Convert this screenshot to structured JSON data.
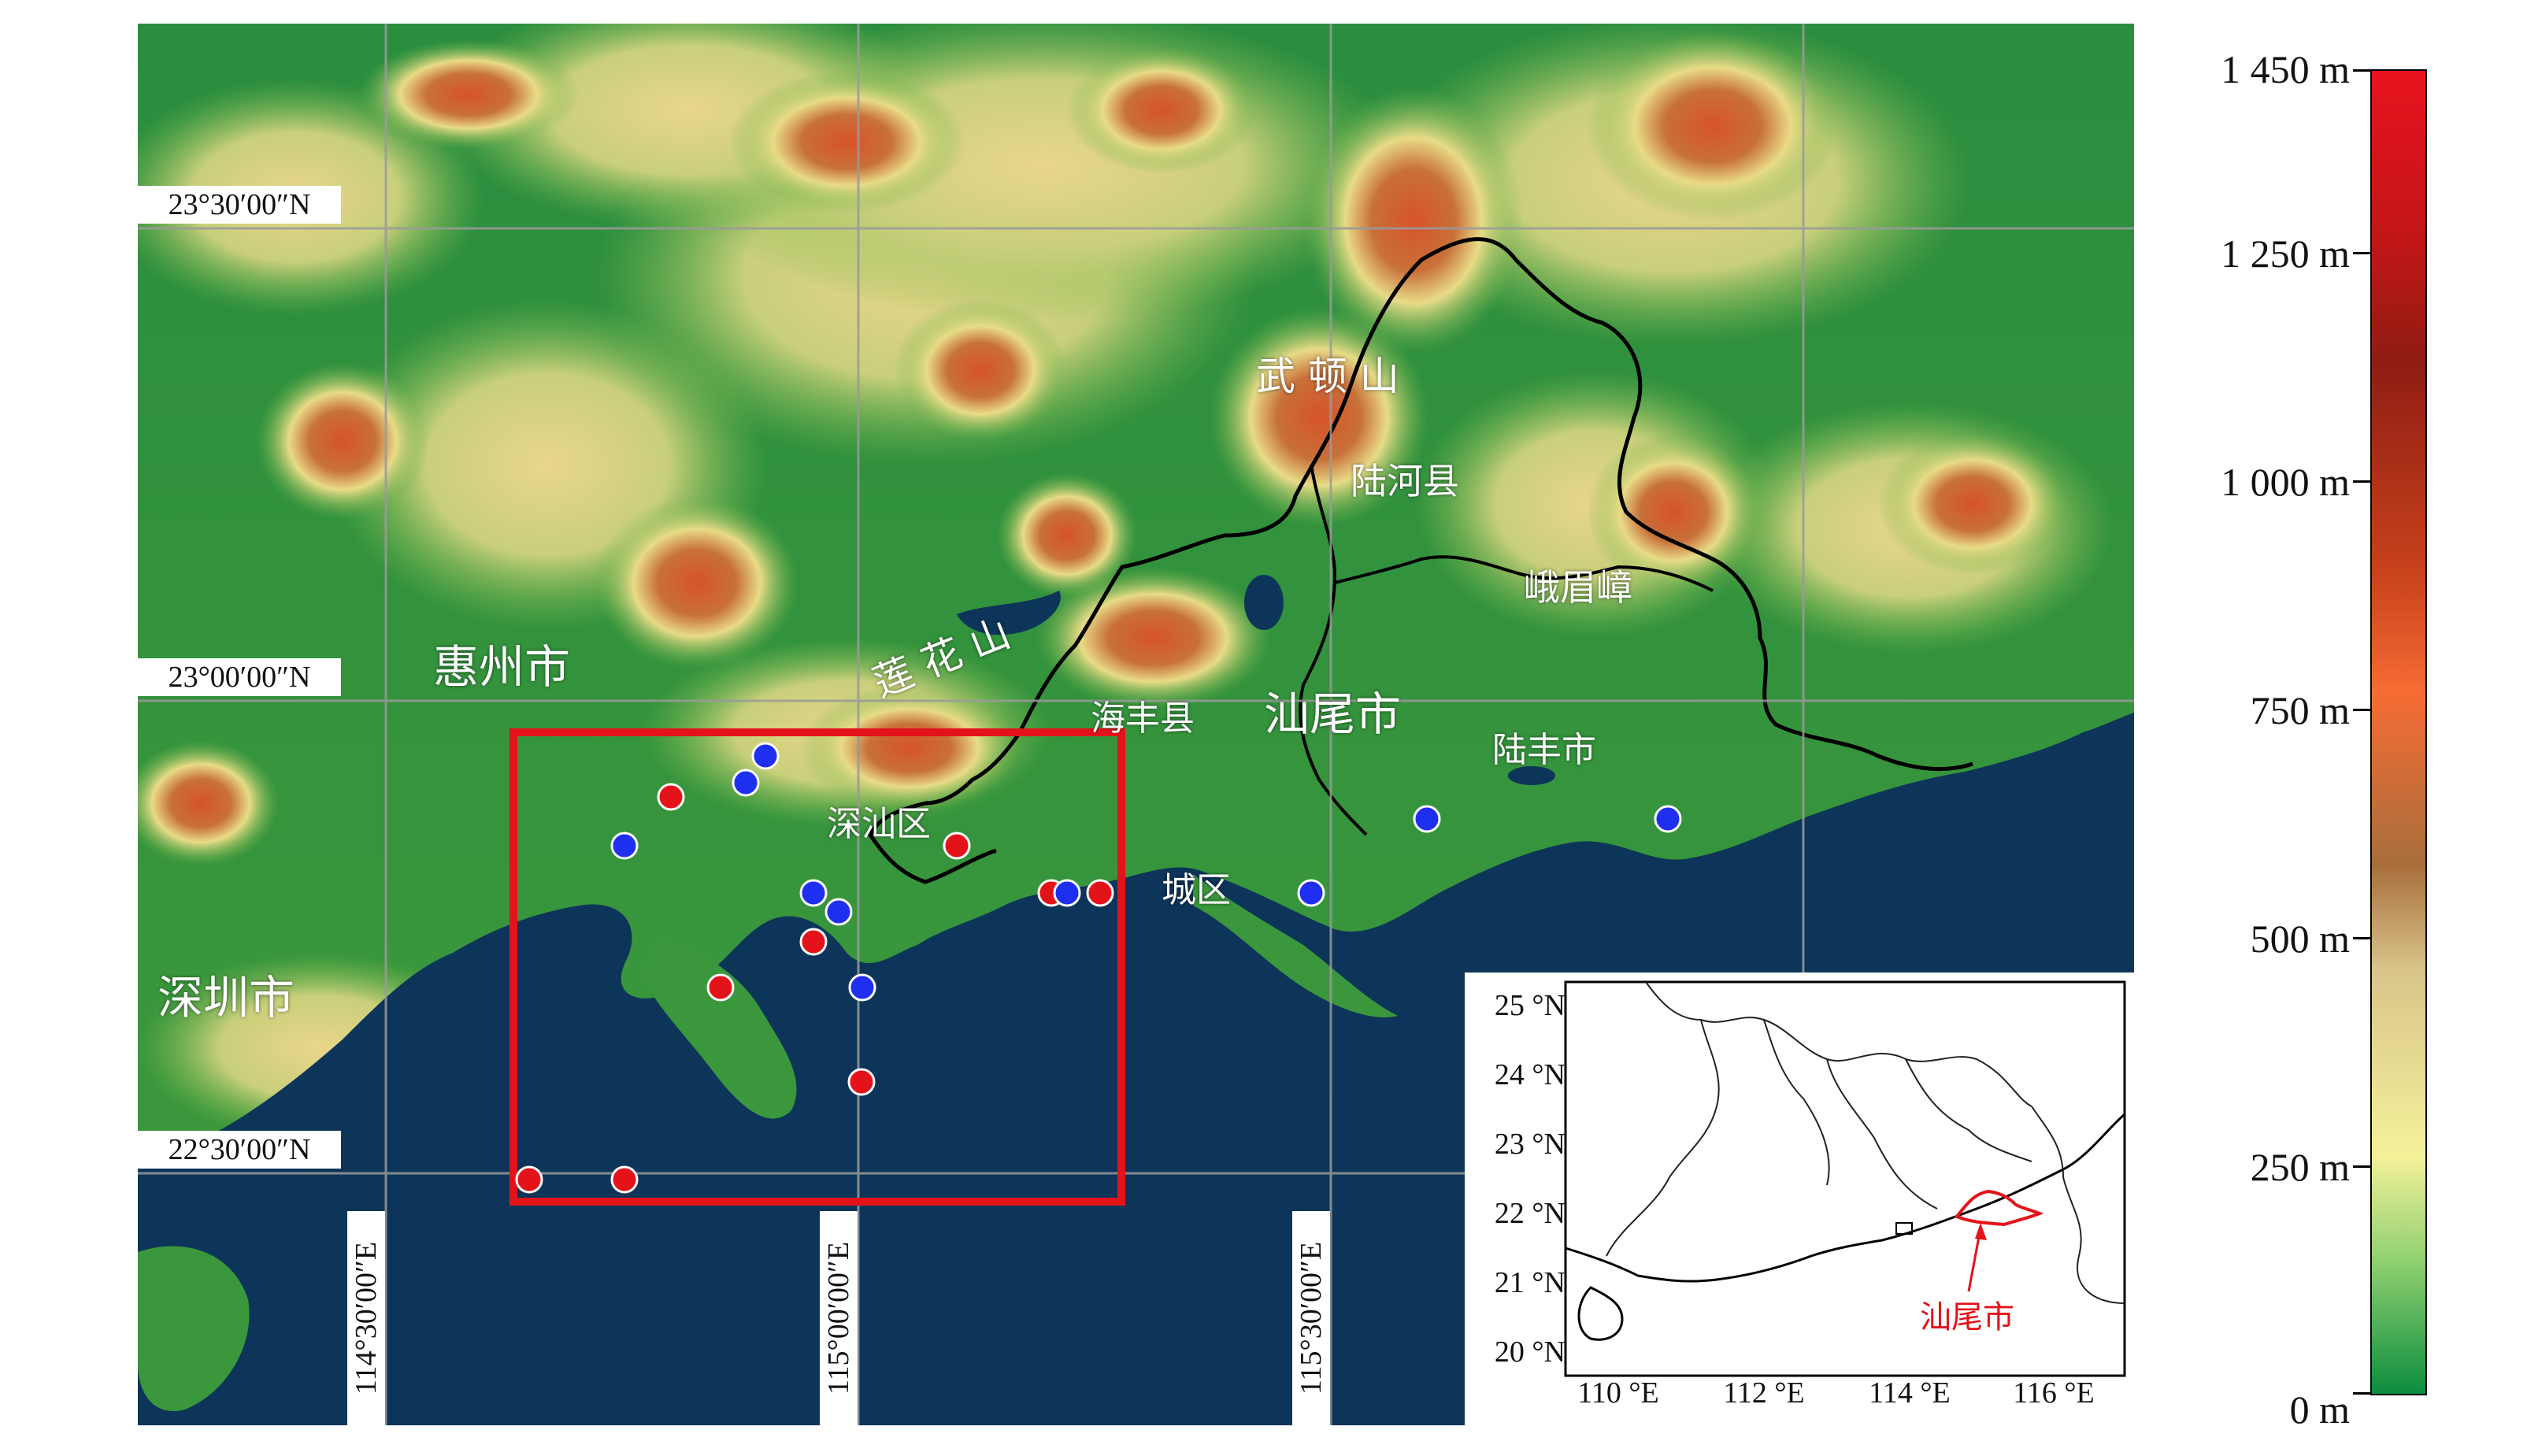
{
  "map": {
    "place_labels": {
      "huizhou": "惠州市",
      "shenzhen": "深圳市",
      "shanwei": "汕尾市",
      "wudun_shan": "武 顿 山",
      "luhe": "陆河县",
      "emeizhang": "峨眉嶂",
      "lianhua_shan": "莲 花 山",
      "haifeng": "海丰县",
      "lufeng": "陆丰市",
      "shenshan": "深汕区",
      "chengqu": "城区"
    },
    "latitude_labels": [
      "23°30′00″N",
      "23°00′00″N",
      "22°30′00″N"
    ],
    "longitude_labels": [
      "114°30′00″E",
      "115°00′00″E",
      "115°30′00″E"
    ],
    "point_colors": {
      "red": "#e4131a",
      "blue": "#1f2ff0"
    },
    "study_area_box_color": "#e4131a",
    "sea_color": "#0d3559"
  },
  "inset": {
    "lat_ticks": [
      "25 °N",
      "24 °N",
      "23 °N",
      "22 °N",
      "21 °N",
      "20 °N"
    ],
    "lon_ticks": [
      "110 °E",
      "112 °E",
      "114 °E",
      "116 °E"
    ],
    "highlight_label": "汕尾市",
    "highlight_color": "#e4131a"
  },
  "legend": {
    "labels": [
      "1 450 m",
      "1 250 m",
      "1 000 m",
      "750 m",
      "500 m",
      "250 m",
      "0 m"
    ],
    "gradient_colors": [
      "#e8131d",
      "#8f1d13",
      "#f66c34",
      "#d9c58a",
      "#f4f19a",
      "#0c8d3e"
    ]
  }
}
